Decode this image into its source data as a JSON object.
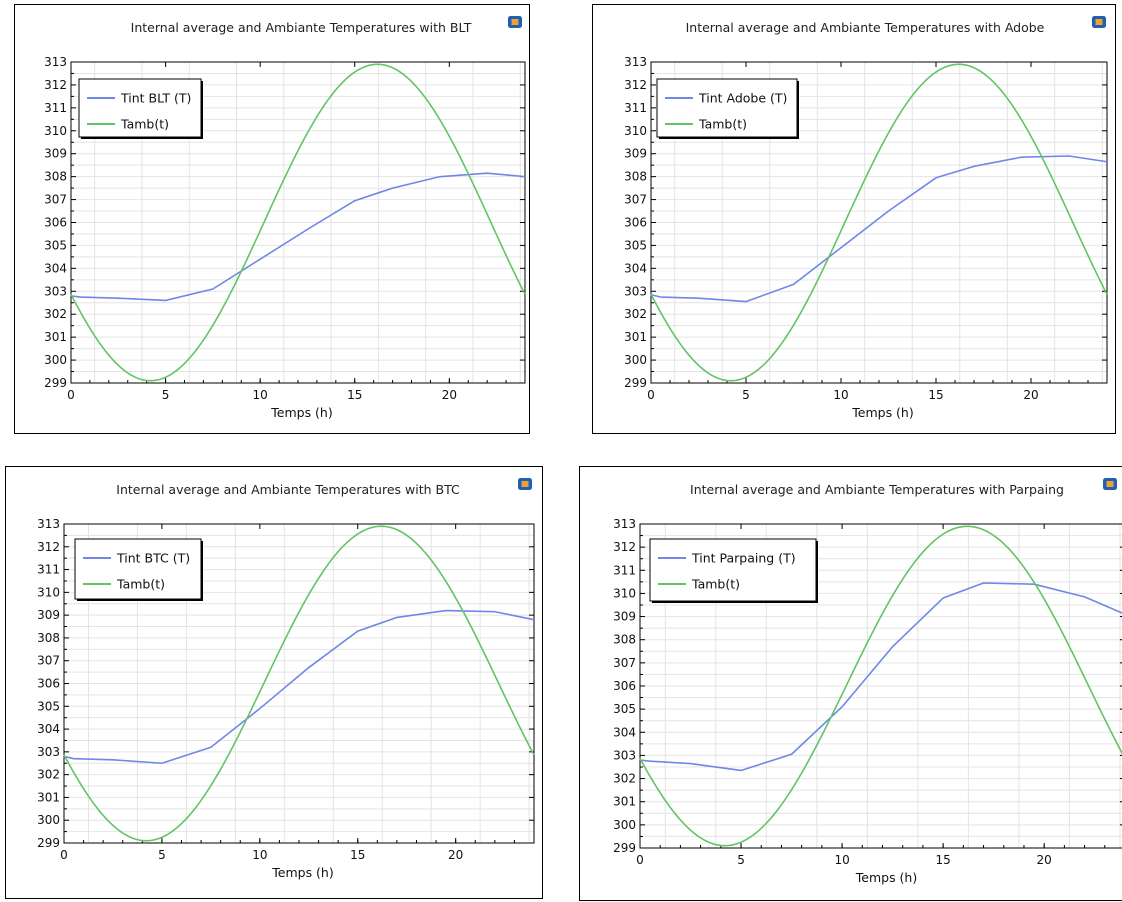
{
  "colors": {
    "tint": "#6f87e6",
    "tamb": "#63c463",
    "grid": "#e4e4e4",
    "logo_blue": "#1f5fb8",
    "logo_orange": "#f0a12b"
  },
  "icons": {
    "panel_logo": "app-logo-icon"
  },
  "chart_data": [
    {
      "type": "line",
      "title": "Internal average and Ambiante Temperatures with BLT",
      "xlabel": "Temps (h)",
      "ylabel": "",
      "xlim": [
        0,
        24
      ],
      "ylim": [
        299,
        313
      ],
      "xticks": [
        0,
        5,
        10,
        15,
        20
      ],
      "yticks": [
        299,
        300,
        301,
        302,
        303,
        304,
        305,
        306,
        307,
        308,
        309,
        310,
        311,
        312,
        313
      ],
      "grid": true,
      "legend": "top-left",
      "series": [
        {
          "name": "Tint BLT (T)",
          "color": "#6f87e6",
          "x": [
            0,
            0.5,
            2.5,
            5,
            7.5,
            10,
            12.5,
            15,
            17,
            19.5,
            22,
            24
          ],
          "y": [
            302.8,
            302.75,
            302.7,
            302.6,
            303.1,
            304.4,
            305.7,
            306.95,
            307.5,
            308.0,
            308.15,
            308.0
          ]
        },
        {
          "name": "Tamb(t)",
          "kind": "sinusoid",
          "color": "#63c463",
          "mean": 306,
          "amplitude": 6.9,
          "period": 24,
          "peak_at": 16.2,
          "x_range": [
            0,
            24
          ]
        }
      ]
    },
    {
      "type": "line",
      "title": "Internal average and Ambiante Temperatures with Adobe",
      "xlabel": "Temps (h)",
      "ylabel": "",
      "xlim": [
        0,
        24
      ],
      "ylim": [
        299,
        313
      ],
      "xticks": [
        0,
        5,
        10,
        15,
        20
      ],
      "yticks": [
        299,
        300,
        301,
        302,
        303,
        304,
        305,
        306,
        307,
        308,
        309,
        310,
        311,
        312,
        313
      ],
      "grid": true,
      "legend": "top-left",
      "series": [
        {
          "name": "Tint Adobe (T)",
          "color": "#6f87e6",
          "x": [
            0,
            0.5,
            2.5,
            5,
            7.5,
            10,
            12.5,
            15,
            17,
            19.5,
            22,
            24
          ],
          "y": [
            302.85,
            302.75,
            302.7,
            302.55,
            303.3,
            304.9,
            306.5,
            307.95,
            308.45,
            308.85,
            308.9,
            308.65
          ]
        },
        {
          "name": "Tamb(t)",
          "kind": "sinusoid",
          "color": "#63c463",
          "mean": 306,
          "amplitude": 6.9,
          "period": 24,
          "peak_at": 16.2,
          "x_range": [
            0,
            24
          ]
        }
      ]
    },
    {
      "type": "line",
      "title": "Internal average and Ambiante Temperatures with BTC",
      "xlabel": "Temps (h)",
      "ylabel": "",
      "xlim": [
        0,
        24
      ],
      "ylim": [
        299,
        313
      ],
      "xticks": [
        0,
        5,
        10,
        15,
        20
      ],
      "yticks": [
        299,
        300,
        301,
        302,
        303,
        304,
        305,
        306,
        307,
        308,
        309,
        310,
        311,
        312,
        313
      ],
      "grid": true,
      "legend": "top-left",
      "series": [
        {
          "name": "Tint BTC (T)",
          "color": "#6f87e6",
          "x": [
            0,
            0.5,
            2.5,
            5,
            7.5,
            10,
            12.5,
            15,
            17,
            19.5,
            22,
            24
          ],
          "y": [
            302.8,
            302.7,
            302.65,
            302.5,
            303.2,
            304.9,
            306.7,
            308.3,
            308.9,
            309.2,
            309.15,
            308.8
          ]
        },
        {
          "name": "Tamb(t)",
          "kind": "sinusoid",
          "color": "#63c463",
          "mean": 306,
          "amplitude": 6.9,
          "period": 24,
          "peak_at": 16.2,
          "x_range": [
            0,
            24
          ]
        }
      ]
    },
    {
      "type": "line",
      "title": "Internal average and Ambiante Temperatures with Parpaing",
      "xlabel": "Temps (h)",
      "ylabel": "",
      "xlim": [
        0,
        24
      ],
      "ylim": [
        299,
        313
      ],
      "xticks": [
        0,
        5,
        10,
        15,
        20
      ],
      "yticks": [
        299,
        300,
        301,
        302,
        303,
        304,
        305,
        306,
        307,
        308,
        309,
        310,
        311,
        312,
        313
      ],
      "grid": true,
      "legend": "top-left",
      "series": [
        {
          "name": "Tint Parpaing (T)",
          "color": "#6f87e6",
          "x": [
            0,
            0.5,
            2.5,
            5,
            7.5,
            10,
            12.5,
            15,
            17,
            19.5,
            22,
            24
          ],
          "y": [
            302.8,
            302.75,
            302.65,
            302.35,
            303.05,
            305.1,
            307.7,
            309.8,
            310.45,
            310.4,
            309.85,
            309.1
          ]
        },
        {
          "name": "Tamb(t)",
          "kind": "sinusoid",
          "color": "#63c463",
          "mean": 306,
          "amplitude": 6.9,
          "period": 24,
          "peak_at": 16.2,
          "x_range": [
            0,
            24
          ]
        }
      ]
    }
  ]
}
